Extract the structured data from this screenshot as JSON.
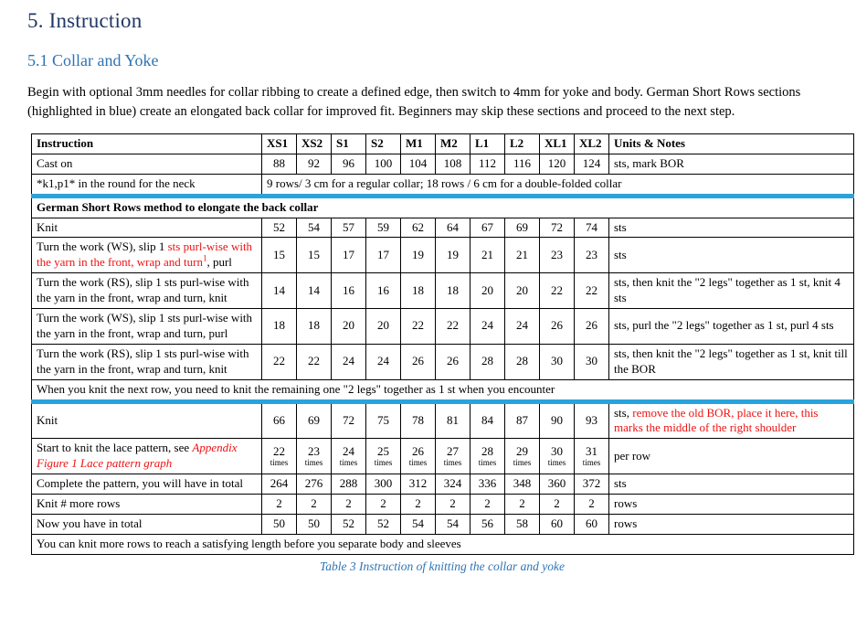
{
  "colors": {
    "heading1": "#1F3864",
    "heading2": "#2E74B5",
    "caption_blue": "#2E74B5",
    "red_text": "#EE1111",
    "highlight_border": "#29A3DC",
    "grid_border": "#000000"
  },
  "heading1": "5. Instruction",
  "heading2": "5.1 Collar and Yoke",
  "intro": "Begin with optional 3mm needles for collar ribbing to create a defined edge, then switch to 4mm for yoke and body. German Short Rows sections (highlighted in blue) create an elongated back collar for improved fit. Beginners may skip these sections and proceed to the next step.",
  "table": {
    "caption": "Table 3 Instruction of knitting the collar and yoke",
    "headers": [
      "Instruction",
      "XS1",
      "XS2",
      "S1",
      "S2",
      "M1",
      "M2",
      "L1",
      "L2",
      "XL1",
      "XL2",
      "Units & Notes"
    ],
    "rows": [
      {
        "type": "data",
        "label": [
          {
            "t": "Cast on"
          }
        ],
        "values": [
          "88",
          "92",
          "96",
          "100",
          "104",
          "108",
          "112",
          "116",
          "120",
          "124"
        ],
        "note": [
          {
            "t": "sts, mark BOR"
          }
        ]
      },
      {
        "type": "label-span",
        "label": [
          {
            "t": "*k1,p1* in the round for the neck"
          }
        ],
        "span": [
          {
            "t": "9 rows/ 3 cm for a regular collar; 18 rows / 6 cm for a double-folded collar"
          }
        ]
      },
      {
        "type": "full",
        "bold": true,
        "section": "gsr",
        "text": [
          {
            "t": "German Short Rows method to elongate the back collar"
          }
        ]
      },
      {
        "type": "data",
        "section": "gsr",
        "label": [
          {
            "t": "Knit"
          }
        ],
        "values": [
          "52",
          "54",
          "57",
          "59",
          "62",
          "64",
          "67",
          "69",
          "72",
          "74"
        ],
        "note": [
          {
            "t": "sts"
          }
        ]
      },
      {
        "type": "data",
        "section": "gsr",
        "label": [
          {
            "t": "Turn the work (WS), slip 1 "
          },
          {
            "t": "sts purl-wise with the yarn in the front, wrap and turn",
            "c": "red"
          },
          {
            "t": "1",
            "c": "red",
            "sup": true
          },
          {
            "t": ", purl"
          }
        ],
        "values": [
          "15",
          "15",
          "17",
          "17",
          "19",
          "19",
          "21",
          "21",
          "23",
          "23"
        ],
        "note": [
          {
            "t": "sts"
          }
        ]
      },
      {
        "type": "data",
        "section": "gsr",
        "label": [
          {
            "t": "Turn the work (RS), slip 1 sts purl-wise with the yarn in the front, wrap and turn, knit"
          }
        ],
        "values": [
          "14",
          "14",
          "16",
          "16",
          "18",
          "18",
          "20",
          "20",
          "22",
          "22"
        ],
        "note": [
          {
            "t": "sts, then knit the \"2 legs\" together as 1 st, knit 4 sts"
          }
        ]
      },
      {
        "type": "data",
        "section": "gsr",
        "label": [
          {
            "t": "Turn the work (WS), slip 1 sts purl-wise with the yarn in the front, wrap and turn, purl"
          }
        ],
        "values": [
          "18",
          "18",
          "20",
          "20",
          "22",
          "22",
          "24",
          "24",
          "26",
          "26"
        ],
        "note": [
          {
            "t": "sts, purl the \"2 legs\" together as 1 st, purl 4 sts"
          }
        ]
      },
      {
        "type": "data",
        "section": "gsr",
        "label": [
          {
            "t": "Turn the work (RS), slip 1 sts purl-wise with the yarn in the front, wrap and turn, knit"
          }
        ],
        "values": [
          "22",
          "22",
          "24",
          "24",
          "26",
          "26",
          "28",
          "28",
          "30",
          "30"
        ],
        "note": [
          {
            "t": "sts, then knit the \"2 legs\" together as 1 st, knit till the BOR"
          }
        ]
      },
      {
        "type": "full",
        "section": "gsr",
        "text": [
          {
            "t": "When you knit the next row, you need to knit the remaining one \"2 legs\" together as 1 st when you encounter"
          }
        ]
      },
      {
        "type": "data",
        "label": [
          {
            "t": "Knit"
          }
        ],
        "values": [
          "66",
          "69",
          "72",
          "75",
          "78",
          "81",
          "84",
          "87",
          "90",
          "93"
        ],
        "note": [
          {
            "t": "sts, "
          },
          {
            "t": "remove the old BOR, place it here, this marks the middle of the right shoulder",
            "c": "red"
          }
        ]
      },
      {
        "type": "data",
        "label": [
          {
            "t": "Start to knit the lace pattern, see "
          },
          {
            "t": "Appendix Figure 1 Lace pattern graph",
            "c": "red",
            "i": true
          }
        ],
        "values": [
          {
            "n": "22",
            "u": "times"
          },
          {
            "n": "23",
            "u": "times"
          },
          {
            "n": "24",
            "u": "times"
          },
          {
            "n": "25",
            "u": "times"
          },
          {
            "n": "26",
            "u": "times"
          },
          {
            "n": "27",
            "u": "times"
          },
          {
            "n": "28",
            "u": "times"
          },
          {
            "n": "29",
            "u": "times"
          },
          {
            "n": "30",
            "u": "times"
          },
          {
            "n": "31",
            "u": "times"
          }
        ],
        "note": [
          {
            "t": "per row"
          }
        ]
      },
      {
        "type": "data",
        "label": [
          {
            "t": "Complete the pattern, you will have in total"
          }
        ],
        "values": [
          "264",
          "276",
          "288",
          "300",
          "312",
          "324",
          "336",
          "348",
          "360",
          "372"
        ],
        "note": [
          {
            "t": "sts"
          }
        ]
      },
      {
        "type": "data",
        "label": [
          {
            "t": "Knit # more rows"
          }
        ],
        "values": [
          "2",
          "2",
          "2",
          "2",
          "2",
          "2",
          "2",
          "2",
          "2",
          "2"
        ],
        "note": [
          {
            "t": "rows"
          }
        ]
      },
      {
        "type": "data",
        "label": [
          {
            "t": "Now you have in total"
          }
        ],
        "values": [
          "50",
          "50",
          "52",
          "52",
          "54",
          "54",
          "56",
          "58",
          "60",
          "60"
        ],
        "note": [
          {
            "t": "rows"
          }
        ]
      },
      {
        "type": "full",
        "text": [
          {
            "t": "You can knit more rows to reach a satisfying length before you separate body and sleeves"
          }
        ]
      }
    ]
  }
}
